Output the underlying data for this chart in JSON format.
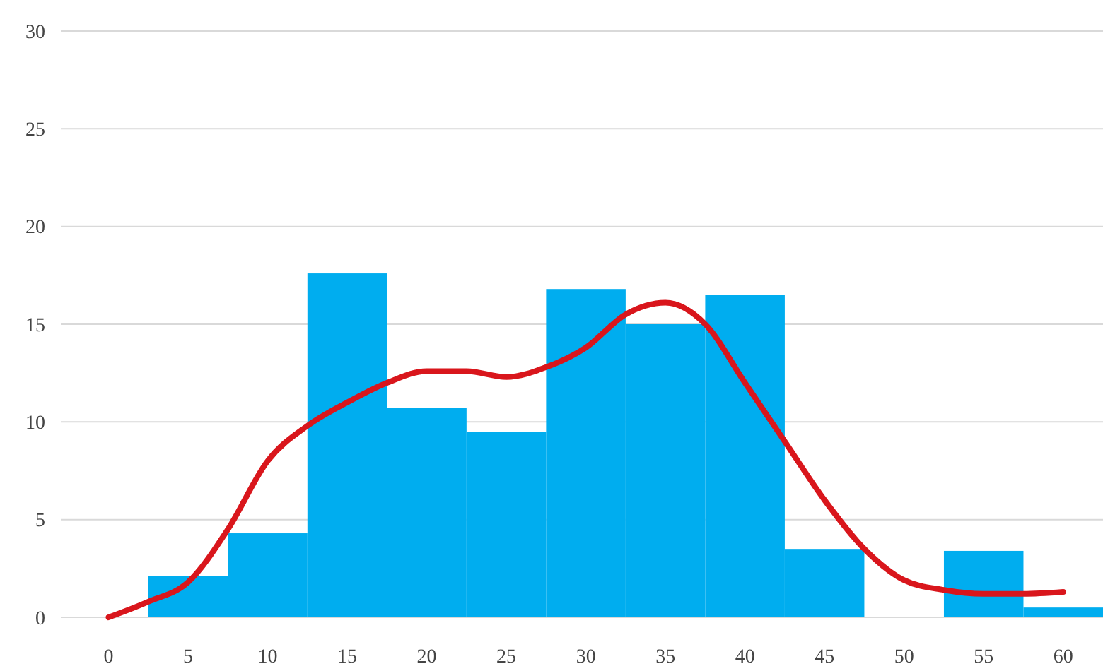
{
  "chart_data": {
    "type": "histogram",
    "xlim": [
      -3,
      62.5
    ],
    "ylim": [
      0,
      30
    ],
    "xticks": [
      0,
      5,
      10,
      15,
      20,
      25,
      30,
      35,
      40,
      45,
      50,
      55,
      60
    ],
    "yticks": [
      0,
      5,
      10,
      15,
      20,
      25,
      30
    ],
    "grid": "y",
    "color": "#00adef",
    "bins": [
      2.5,
      7.5,
      12.5,
      17.5,
      22.5,
      27.5,
      32.5,
      37.5,
      42.5,
      47.5,
      52.5,
      57.5,
      62.5
    ],
    "values": [
      2.1,
      4.3,
      17.6,
      10.7,
      9.5,
      16.8,
      15,
      16.5,
      3.5,
      0,
      3.4,
      0.5
    ],
    "series": [
      {
        "type": "line",
        "color": "#d9161c",
        "x": [
          0,
          2.5,
          5,
          7.5,
          10,
          12.5,
          15,
          17.5,
          20,
          22.5,
          25,
          27.5,
          30,
          32.5,
          35,
          37.5,
          40,
          42.5,
          45,
          47.5,
          50,
          52.5,
          55,
          57.5,
          60
        ],
        "values": [
          0,
          0.8,
          1.8,
          4.5,
          8,
          9.8,
          11,
          12,
          12.6,
          12.6,
          12.3,
          12.8,
          13.8,
          15.5,
          16.1,
          15,
          12,
          9,
          6,
          3.5,
          1.9,
          1.4,
          1.2,
          1.2,
          1.3
        ]
      }
    ]
  }
}
